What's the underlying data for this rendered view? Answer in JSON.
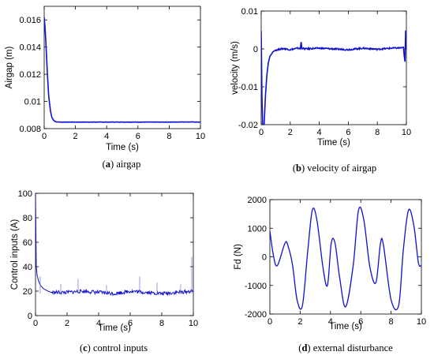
{
  "chart_data": [
    {
      "type": "line",
      "caption_letter": "a",
      "caption_text": " airgap",
      "xlabel": "Time (s)",
      "ylabel": "Airgap (m)",
      "xlim": [
        0,
        10
      ],
      "ylim": [
        0.008,
        0.017
      ],
      "xticks": [
        "0",
        "2",
        "4",
        "6",
        "8",
        "10"
      ],
      "yticks": [
        "0.008",
        "0.01",
        "0.012",
        "0.014",
        "0.016"
      ],
      "grid": false,
      "series": [
        {
          "x": [
            0,
            0.05,
            0.1,
            0.15,
            0.2,
            0.25,
            0.3,
            0.4,
            0.5,
            0.6,
            0.7,
            0.8,
            1.0,
            2,
            3,
            4,
            5,
            6,
            7,
            8,
            9,
            10
          ],
          "y": [
            0.0162,
            0.0155,
            0.0145,
            0.0133,
            0.0121,
            0.0111,
            0.0103,
            0.0093,
            0.0088,
            0.00862,
            0.00852,
            0.00849,
            0.00848,
            0.00848,
            0.00848,
            0.00848,
            0.00848,
            0.00848,
            0.00848,
            0.00848,
            0.00849,
            0.00848
          ]
        }
      ]
    },
    {
      "type": "line",
      "caption_letter": "b",
      "caption_text": " velocity of airgap",
      "xlabel": "Time (s)",
      "ylabel": "velocity (m/s)",
      "xlim": [
        0,
        10
      ],
      "ylim": [
        -0.02,
        0.01
      ],
      "xticks": [
        "0",
        "2",
        "4",
        "6",
        "8",
        "10"
      ],
      "yticks": [
        "-0.02",
        "-0.01",
        "0",
        "0.01"
      ],
      "grid": false,
      "series": [
        {
          "x": [
            0,
            0.05,
            0.1,
            0.15,
            0.2,
            0.3,
            0.4,
            0.5,
            0.6,
            0.8,
            1.0,
            1.5,
            2.0,
            2.5,
            2.7,
            2.75,
            2.8,
            3,
            4,
            5,
            6,
            7,
            8,
            9,
            9.8,
            9.9,
            9.95,
            10
          ],
          "y": [
            0.0048,
            -0.012,
            -0.02,
            -0.02,
            -0.02,
            -0.012,
            -0.0065,
            -0.0035,
            -0.002,
            -0.0008,
            -0.0003,
            0.0001,
            -0.0002,
            0.0002,
            0.0001,
            0.0018,
            0.0002,
            0,
            0.0002,
            0,
            -0.0002,
            0.0002,
            -0.0001,
            0.0002,
            0.0003,
            -0.0035,
            0.0048,
            0
          ]
        }
      ]
    },
    {
      "type": "line",
      "caption_letter": "c",
      "caption_text": " control inputs",
      "xlabel": "Time (s)",
      "ylabel": "Control inputs (A)",
      "xlim": [
        0,
        10
      ],
      "ylim": [
        0,
        100
      ],
      "xticks": [
        "0",
        "2",
        "4",
        "6",
        "8",
        "10"
      ],
      "yticks": [
        "0",
        "20",
        "40",
        "60",
        "80",
        "100"
      ],
      "grid": false,
      "series": [
        {
          "x": [
            0,
            0.05,
            0.1,
            0.2,
            0.3,
            0.5,
            0.8,
            1,
            2,
            3,
            4,
            5,
            6,
            7,
            8,
            9,
            10
          ],
          "y": [
            100,
            40,
            33,
            28,
            25,
            22,
            20,
            19,
            19,
            20,
            19,
            18,
            20,
            19,
            18,
            19,
            20
          ]
        }
      ]
    },
    {
      "type": "line",
      "caption_letter": "d",
      "caption_text": " external disturbance",
      "xlabel": "Time (s)",
      "ylabel": "Fd (N)",
      "xlim": [
        0,
        10
      ],
      "ylim": [
        -2000,
        2000
      ],
      "xticks": [
        "0",
        "2",
        "4",
        "6",
        "8",
        "10"
      ],
      "yticks": [
        "-2000",
        "-1000",
        "0",
        "1000",
        "2000"
      ],
      "grid": false,
      "series": [
        {
          "x": [
            0,
            0.25,
            0.5,
            1.0,
            1.2,
            1.5,
            1.8,
            2.15,
            2.5,
            2.8,
            3.1,
            3.5,
            3.8,
            4.05,
            4.3,
            4.6,
            5.0,
            5.5,
            5.85,
            6.2,
            6.6,
            7.0,
            7.3,
            7.5,
            8.0,
            8.5,
            8.8,
            9.15,
            9.5,
            9.8,
            10
          ],
          "y": [
            900,
            0,
            -300,
            480,
            380,
            -300,
            -1520,
            -1700,
            200,
            1630,
            1300,
            -350,
            -1000,
            480,
            480,
            -700,
            -1750,
            -300,
            1630,
            1300,
            -350,
            -900,
            480,
            400,
            -1500,
            -1700,
            200,
            1630,
            1100,
            -200,
            -300
          ]
        }
      ]
    }
  ]
}
